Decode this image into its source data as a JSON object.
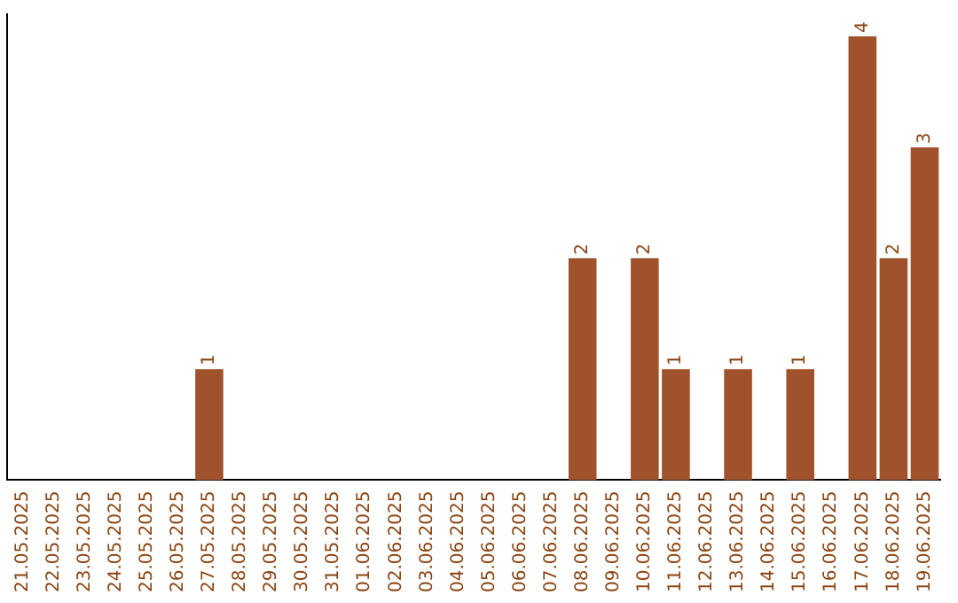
{
  "chart_data": {
    "type": "bar",
    "categories": [
      "21.05.2025",
      "22.05.2025",
      "23.05.2025",
      "24.05.2025",
      "25.05.2025",
      "26.05.2025",
      "27.05.2025",
      "28.05.2025",
      "29.05.2025",
      "30.05.2025",
      "31.05.2025",
      "01.06.2025",
      "02.06.2025",
      "03.06.2025",
      "04.06.2025",
      "05.06.2025",
      "06.06.2025",
      "07.06.2025",
      "08.06.2025",
      "09.06.2025",
      "10.06.2025",
      "11.06.2025",
      "12.06.2025",
      "13.06.2025",
      "14.06.2025",
      "15.06.2025",
      "16.06.2025",
      "17.06.2025",
      "18.06.2025",
      "19.06.2025"
    ],
    "values": [
      0,
      0,
      0,
      0,
      0,
      0,
      1,
      0,
      0,
      0,
      0,
      0,
      0,
      0,
      0,
      0,
      0,
      0,
      2,
      0,
      2,
      1,
      0,
      1,
      0,
      1,
      0,
      4,
      2,
      3
    ],
    "value_labels": [
      null,
      null,
      null,
      null,
      null,
      null,
      "1",
      null,
      null,
      null,
      null,
      null,
      null,
      null,
      null,
      null,
      null,
      null,
      "2",
      null,
      "2",
      "1",
      null,
      "1",
      null,
      "1",
      null,
      "4",
      "2",
      "3"
    ],
    "color": "#a0522d",
    "ylim": [
      0,
      4.2
    ],
    "tick_labels": "x",
    "grid": false,
    "legend": false
  }
}
